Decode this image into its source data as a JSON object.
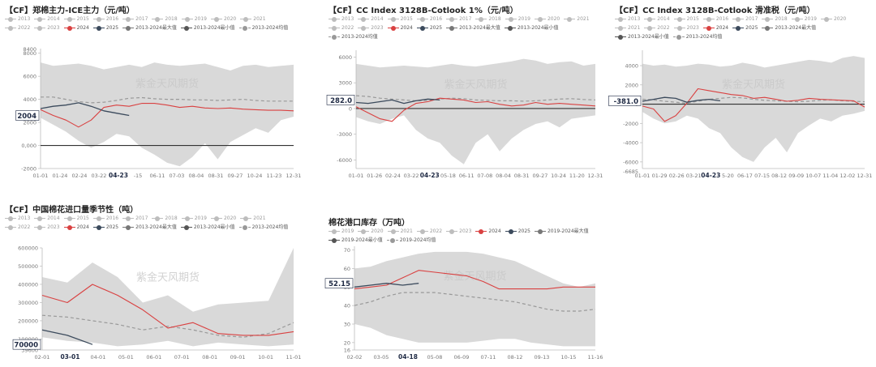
{
  "watermark": "紫金天风期货",
  "chart_data": [
    {
      "id": "c1",
      "type": "line",
      "title": "【CF】郑棉主力-ICE主力（元/吨）",
      "legend": [
        "2013",
        "2014",
        "2015",
        "2016",
        "2017",
        "2018",
        "2019",
        "2020",
        "2021",
        "2022",
        "2023",
        "2024",
        "2025",
        "2013-2024最大值",
        "2013-2024最小值",
        "2013-2024均值"
      ],
      "xticks": [
        "01-01",
        "01-24",
        "02-24",
        "03-22",
        "04-23",
        "-15",
        "06-11",
        "07-03",
        "08-04",
        "08-31",
        "09-27",
        "10-24",
        "11-23",
        "12-31"
      ],
      "x_highlight": "04-23",
      "yticks": [
        -2000,
        0,
        2000,
        4000,
        6000,
        8000
      ],
      "ytick_labels": [
        "-2000",
        "0,000",
        "2000",
        "4000",
        "6000",
        "8000"
      ],
      "ylim": [
        -2000,
        8400
      ],
      "ymax_label": "8400",
      "callout": "2004",
      "colors": {
        "band": "#d9d9d9",
        "s2024": "#d94141",
        "s2025": "#3b4a5c",
        "mean": "#999999"
      },
      "band_max": [
        7200,
        6900,
        7000,
        7100,
        6900,
        6600,
        6800,
        7000,
        6800,
        7200,
        7000,
        6900,
        7000,
        7100,
        6800,
        6500,
        6900,
        7000,
        6800,
        6900,
        7000
      ],
      "band_min": [
        2400,
        1800,
        1200,
        400,
        -200,
        300,
        1000,
        800,
        -200,
        -800,
        -1500,
        -1800,
        -1000,
        200,
        -1200,
        300,
        900,
        1500,
        1100,
        2200,
        2500
      ],
      "mean": [
        4200,
        4200,
        4000,
        3800,
        3700,
        3750,
        3900,
        4100,
        4150,
        4050,
        4000,
        4000,
        3950,
        3950,
        3900,
        3950,
        4000,
        3900,
        3850,
        3850,
        3850
      ],
      "s2024": [
        3100,
        2600,
        2200,
        1600,
        2200,
        3300,
        3500,
        3400,
        3650,
        3650,
        3500,
        3300,
        3400,
        3250,
        3200,
        3250,
        3150,
        3100,
        3050,
        3050,
        3000
      ],
      "s2025": [
        3200,
        3400,
        3500,
        3700,
        3400,
        3000,
        2800,
        2600
      ]
    },
    {
      "id": "c2",
      "type": "line",
      "title": "【CF】CC Index 3128B-Cotlook 1%（元/吨）",
      "legend": [
        "2013",
        "2014",
        "2015",
        "2016",
        "2017",
        "2018",
        "2019",
        "2020",
        "2021",
        "2022",
        "2023",
        "2024",
        "2025",
        "2013-2024最大值",
        "2013-2024最小值",
        "2013-2024均值"
      ],
      "xticks": [
        "01-01",
        "01-26",
        "02-24",
        "03-22",
        "04-23",
        "05-18",
        "06-11",
        "07-08",
        "08-04",
        "08-31",
        "09-27",
        "10-24",
        "11-20",
        "12-31"
      ],
      "x_highlight": "04-23",
      "yticks": [
        -6000,
        -3000,
        0,
        3000,
        6000
      ],
      "ytick_labels": [
        "-6000",
        "-3000",
        "0",
        "3000",
        "6000"
      ],
      "ylim": [
        -7000,
        6800
      ],
      "callout": "282.0",
      "colors": {
        "band": "#d9d9d9",
        "s2024": "#d94141",
        "s2025": "#3b4a5c",
        "mean": "#999999"
      },
      "band_max": [
        5200,
        5000,
        4800,
        4900,
        5000,
        4900,
        4800,
        5000,
        5200,
        5000,
        4900,
        5100,
        5300,
        5500,
        5800,
        5600,
        5200,
        5400,
        5500,
        5000,
        5200
      ],
      "band_min": [
        -1000,
        -1500,
        -1800,
        -1200,
        -800,
        -2500,
        -3500,
        -4000,
        -5500,
        -6500,
        -4000,
        -3000,
        -5000,
        -3500,
        -2500,
        -1800,
        -1500,
        -2200,
        -1200,
        -1000,
        -800
      ],
      "mean": [
        1500,
        1400,
        1200,
        1100,
        1000,
        900,
        950,
        1100,
        1200,
        1150,
        1000,
        950,
        900,
        900,
        850,
        900,
        1000,
        1100,
        1150,
        1050,
        1000
      ],
      "s2024": [
        200,
        -500,
        -1200,
        -1500,
        -200,
        600,
        800,
        1200,
        1100,
        1000,
        700,
        800,
        500,
        300,
        400,
        700,
        500,
        600,
        500,
        400,
        300
      ],
      "s2025": [
        700,
        600,
        800,
        1000,
        600,
        900,
        1100,
        1000
      ]
    },
    {
      "id": "c3",
      "type": "line",
      "title": "【CF】CC Index 3128B-Cotlook 滑准税（元/吨）",
      "legend": [
        "2013",
        "2014",
        "2015",
        "2016",
        "2017",
        "2018",
        "2019",
        "2020",
        "2021",
        "2022",
        "2023",
        "2024",
        "2025",
        "2013-2024最大值",
        "2013-2024最小值",
        "2013-2024均值"
      ],
      "xticks": [
        "01-01",
        "01-29",
        "02-26",
        "03-21",
        "04-23",
        "5-20",
        "06-17",
        "07-15",
        "08-12",
        "09-09",
        "10-07",
        "11-04",
        "12-02",
        "12-31"
      ],
      "x_highlight": "04-23",
      "yticks": [
        -6000,
        -4000,
        -2000,
        0,
        2000,
        4000
      ],
      "ytick_labels": [
        "-6000",
        "-4000",
        "-2000",
        "0",
        "2000",
        "4000"
      ],
      "ylim": [
        -6685,
        5600
      ],
      "ymin_label": "-6685",
      "callout": "-381.0",
      "colors": {
        "band": "#d9d9d9",
        "s2024": "#d94141",
        "s2025": "#3b4a5c",
        "mean": "#999999"
      },
      "band_max": [
        4200,
        4000,
        4100,
        3900,
        4000,
        4200,
        4100,
        3900,
        4000,
        4300,
        4100,
        3800,
        4000,
        4200,
        4400,
        4600,
        4500,
        4300,
        4800,
        5000,
        4800
      ],
      "band_min": [
        -800,
        -1500,
        -2000,
        -1800,
        -1200,
        -1500,
        -2500,
        -3000,
        -4500,
        -5500,
        -6000,
        -4500,
        -3500,
        -5000,
        -3000,
        -2200,
        -1500,
        -1800,
        -1200,
        -1000,
        -700
      ],
      "mean": [
        500,
        450,
        300,
        200,
        100,
        300,
        500,
        600,
        700,
        650,
        500,
        400,
        350,
        300,
        250,
        300,
        400,
        450,
        350,
        300,
        250
      ],
      "s2024": [
        -200,
        -500,
        -1800,
        -1200,
        100,
        1600,
        1400,
        1200,
        1000,
        900,
        600,
        700,
        500,
        300,
        400,
        600,
        500,
        450,
        400,
        350,
        -300
      ],
      "s2025": [
        300,
        500,
        700,
        600,
        200,
        400,
        500,
        350
      ]
    },
    {
      "id": "c4",
      "type": "line",
      "title": "【CF】中国棉花进口量季节性（吨）",
      "legend": [
        "2013",
        "2014",
        "2015",
        "2016",
        "2017",
        "2018",
        "2019",
        "2020",
        "2021",
        "2022",
        "2023",
        "2024",
        "2025",
        "2013-2024最大值",
        "2013-2024最小值",
        "2013-2024均值"
      ],
      "xticks": [
        "02-01",
        "03-01",
        "04-01",
        "05-01",
        "06-01",
        "07-01",
        "08-01",
        "09-01",
        "10-01",
        "11-01"
      ],
      "x_highlight": "03-01",
      "yticks": [
        39600,
        100000,
        200000,
        300000,
        400000,
        500000,
        600000
      ],
      "ytick_labels": [
        "39600",
        "100000",
        "200000",
        "300000",
        "400000",
        "500000",
        "600000"
      ],
      "ylim": [
        39600,
        600000
      ],
      "callout": "70000",
      "colors": {
        "band": "#d9d9d9",
        "s2024": "#d94141",
        "s2025": "#3b4a5c",
        "mean": "#999999"
      },
      "band_max": [
        440000,
        410000,
        520000,
        440000,
        300000,
        340000,
        250000,
        290000,
        300000,
        310000,
        600000
      ],
      "band_min": [
        110000,
        90000,
        80000,
        60000,
        70000,
        90000,
        60000,
        80000,
        70000,
        60000,
        70000
      ],
      "mean": [
        230000,
        220000,
        200000,
        180000,
        150000,
        170000,
        150000,
        120000,
        110000,
        130000,
        190000
      ],
      "s2024": [
        340000,
        300000,
        400000,
        340000,
        260000,
        160000,
        190000,
        130000,
        120000,
        120000,
        140000
      ],
      "s2025": [
        150000,
        120000,
        70000
      ]
    },
    {
      "id": "c5",
      "type": "line",
      "title": "棉花港口库存（万吨）",
      "legend": [
        "2019",
        "2020",
        "2021",
        "2022",
        "2023",
        "2024",
        "2025",
        "2019-2024最大值",
        "2019-2024最小值",
        "2019-2024均值"
      ],
      "xticks": [
        "02-02",
        "03-05",
        "04-18",
        "05-08",
        "06-09",
        "07-11",
        "08-12",
        "09-13",
        "10-15",
        "11-16"
      ],
      "x_highlight": "04-18",
      "yticks": [
        16,
        20,
        30,
        40,
        50,
        60,
        70
      ],
      "ytick_labels": [
        "16",
        "20",
        "30",
        "40",
        "50",
        "60",
        "70"
      ],
      "ylim": [
        16,
        72
      ],
      "callout": "52.15",
      "colors": {
        "band": "#d9d9d9",
        "s2024": "#d94141",
        "s2025": "#3b4a5c",
        "mean": "#999999"
      },
      "band_max": [
        60,
        61,
        64,
        66,
        68,
        69,
        69,
        69,
        68,
        66,
        64,
        60,
        56,
        52,
        50,
        52
      ],
      "band_min": [
        30,
        28,
        24,
        22,
        20,
        20,
        20,
        20,
        21,
        22,
        22,
        20,
        19,
        18,
        18,
        18
      ],
      "mean": [
        40,
        42,
        45,
        47,
        47,
        47,
        46,
        45,
        44,
        43,
        42,
        40,
        38,
        37,
        37,
        38
      ],
      "s2024": [
        49,
        50,
        51,
        55,
        59,
        58,
        57,
        56,
        53,
        49,
        49,
        49,
        49,
        50,
        50,
        50
      ],
      "s2025": [
        50,
        51,
        52,
        51,
        52
      ]
    }
  ]
}
